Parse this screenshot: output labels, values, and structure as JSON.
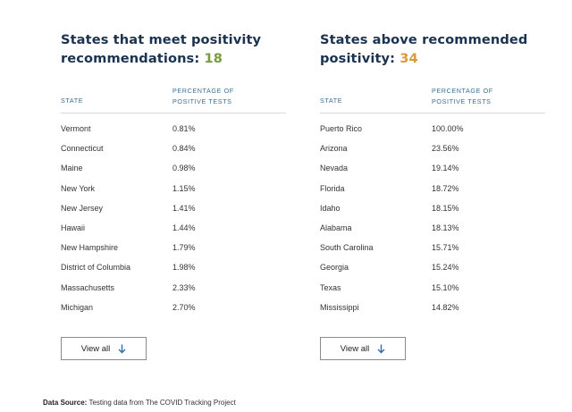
{
  "left_panel": {
    "title_text": "States that meet positivity recommendations: ",
    "count": "18",
    "col_state": "STATE",
    "col_pct": "PERCENTAGE OF POSITIVE TESTS",
    "rows": [
      {
        "state": "Vermont",
        "pct": "0.81%"
      },
      {
        "state": "Connecticut",
        "pct": "0.84%"
      },
      {
        "state": "Maine",
        "pct": "0.98%"
      },
      {
        "state": "New York",
        "pct": "1.15%"
      },
      {
        "state": "New Jersey",
        "pct": "1.41%"
      },
      {
        "state": "Hawaii",
        "pct": "1.44%"
      },
      {
        "state": "New Hampshire",
        "pct": "1.79%"
      },
      {
        "state": "District of Columbia",
        "pct": "1.98%"
      },
      {
        "state": "Massachusetts",
        "pct": "2.33%"
      },
      {
        "state": "Michigan",
        "pct": "2.70%"
      }
    ],
    "view_all_label": "View all"
  },
  "right_panel": {
    "title_text": "States above recommended positivity: ",
    "count": "34",
    "col_state": "STATE",
    "col_pct": "PERCENTAGE OF POSITIVE TESTS",
    "rows": [
      {
        "state": "Puerto Rico",
        "pct": "100.00%"
      },
      {
        "state": "Arizona",
        "pct": "23.56%"
      },
      {
        "state": "Nevada",
        "pct": "19.14%"
      },
      {
        "state": "Florida",
        "pct": "18.72%"
      },
      {
        "state": "Idaho",
        "pct": "18.15%"
      },
      {
        "state": "Alabama",
        "pct": "18.13%"
      },
      {
        "state": "South Carolina",
        "pct": "15.71%"
      },
      {
        "state": "Georgia",
        "pct": "15.24%"
      },
      {
        "state": "Texas",
        "pct": "15.10%"
      },
      {
        "state": "Mississippi",
        "pct": "14.82%"
      }
    ],
    "view_all_label": "View all"
  },
  "footer": {
    "label": "Data Source:",
    "text": " Testing data from The COVID Tracking Project"
  },
  "colors": {
    "heading": "#1b3250",
    "count_meet": "#7a9a3c",
    "count_above": "#d99a3a",
    "column_header": "#3a6f95",
    "arrow": "#2f6ea8"
  },
  "icons": {
    "view_all": "arrow-down-icon"
  }
}
